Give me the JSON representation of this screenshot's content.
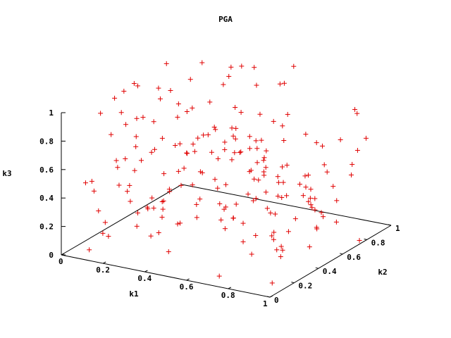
{
  "chart_data": {
    "type": "scatter",
    "title": "PGA",
    "xlabel": "k1",
    "ylabel": "k2",
    "zlabel": "k3",
    "xlim": [
      0,
      1
    ],
    "ylim": [
      0,
      1
    ],
    "zlim": [
      0,
      1
    ],
    "x_ticks": [
      "0",
      "0.2",
      "0.4",
      "0.6",
      "0.8",
      "1"
    ],
    "y_ticks": [
      "0",
      "0.2",
      "0.4",
      "0.6",
      "0.8",
      "1"
    ],
    "z_ticks": [
      "0",
      "0.2",
      "0.4",
      "0.6",
      "0.8",
      "1"
    ],
    "marker": "+",
    "color": "#e00000",
    "grid": false,
    "seed": 20240611,
    "n_points": 200
  }
}
